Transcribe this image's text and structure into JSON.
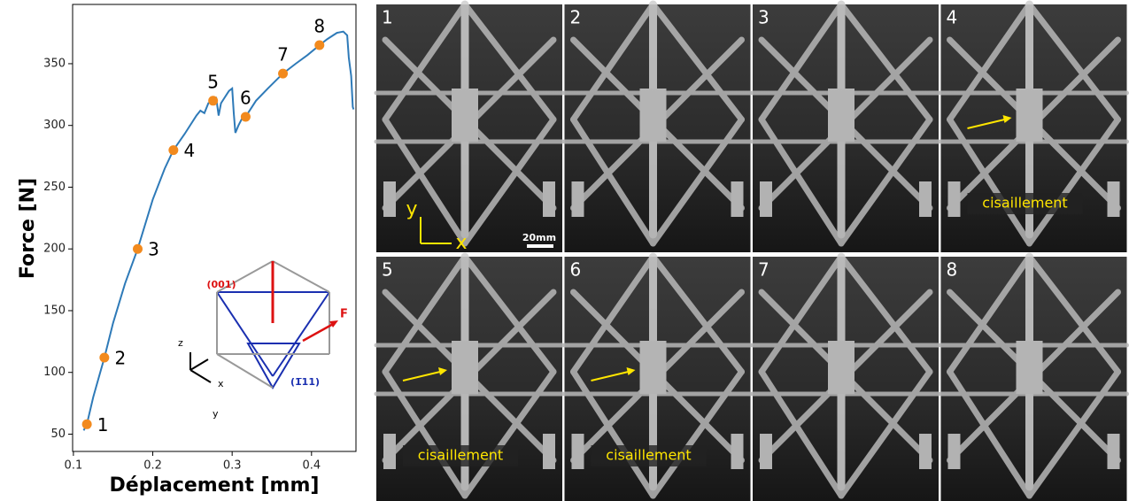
{
  "chart_data": {
    "type": "line",
    "x_label": "Déplacement [mm]",
    "y_label": "Force [N]",
    "xlim": [
      0.099,
      0.456
    ],
    "ylim": [
      36,
      398
    ],
    "xticks": [
      0.1,
      0.2,
      0.3,
      0.4
    ],
    "yticks": [
      50,
      100,
      150,
      200,
      250,
      300,
      350
    ],
    "line": {
      "color": "#2e7ab8",
      "x": [
        0.113,
        0.117,
        0.125,
        0.139,
        0.15,
        0.165,
        0.181,
        0.2,
        0.215,
        0.226,
        0.24,
        0.255,
        0.26,
        0.265,
        0.27,
        0.276,
        0.28,
        0.283,
        0.286,
        0.29,
        0.296,
        0.3,
        0.302,
        0.304,
        0.308,
        0.312,
        0.317,
        0.33,
        0.345,
        0.364,
        0.38,
        0.395,
        0.41,
        0.42,
        0.432,
        0.44,
        0.445,
        0.447,
        0.45,
        0.452,
        0.453
      ],
      "values": [
        53,
        58,
        80,
        112,
        140,
        172,
        200,
        240,
        265,
        280,
        293,
        308,
        312,
        310,
        318,
        320,
        322,
        308,
        318,
        322,
        328,
        330,
        310,
        294,
        300,
        305,
        307,
        320,
        330,
        342,
        350,
        357,
        365,
        370,
        375,
        376,
        373,
        355,
        340,
        315,
        313
      ]
    },
    "points": {
      "color": "#f28a1e",
      "x": [
        0.117,
        0.139,
        0.181,
        0.226,
        0.276,
        0.317,
        0.364,
        0.41
      ],
      "values": [
        58,
        112,
        200,
        280,
        320,
        307,
        342,
        365
      ],
      "labels": [
        "1",
        "2",
        "3",
        "4",
        "5",
        "6",
        "7",
        "8"
      ]
    },
    "inset": {
      "plane_top": "(001)",
      "plane_side": "(1̅11)",
      "force": "F",
      "axes": [
        "z",
        "x",
        "y"
      ]
    }
  },
  "panels": [
    {
      "label": "1",
      "axes": [
        "y",
        "x"
      ],
      "scale": "20mm"
    },
    {
      "label": "2"
    },
    {
      "label": "3"
    },
    {
      "label": "4",
      "caption": "cisaillement"
    },
    {
      "label": "5",
      "caption": "cisaillement"
    },
    {
      "label": "6",
      "caption": "cisaillement"
    },
    {
      "label": "7"
    },
    {
      "label": "8"
    }
  ]
}
